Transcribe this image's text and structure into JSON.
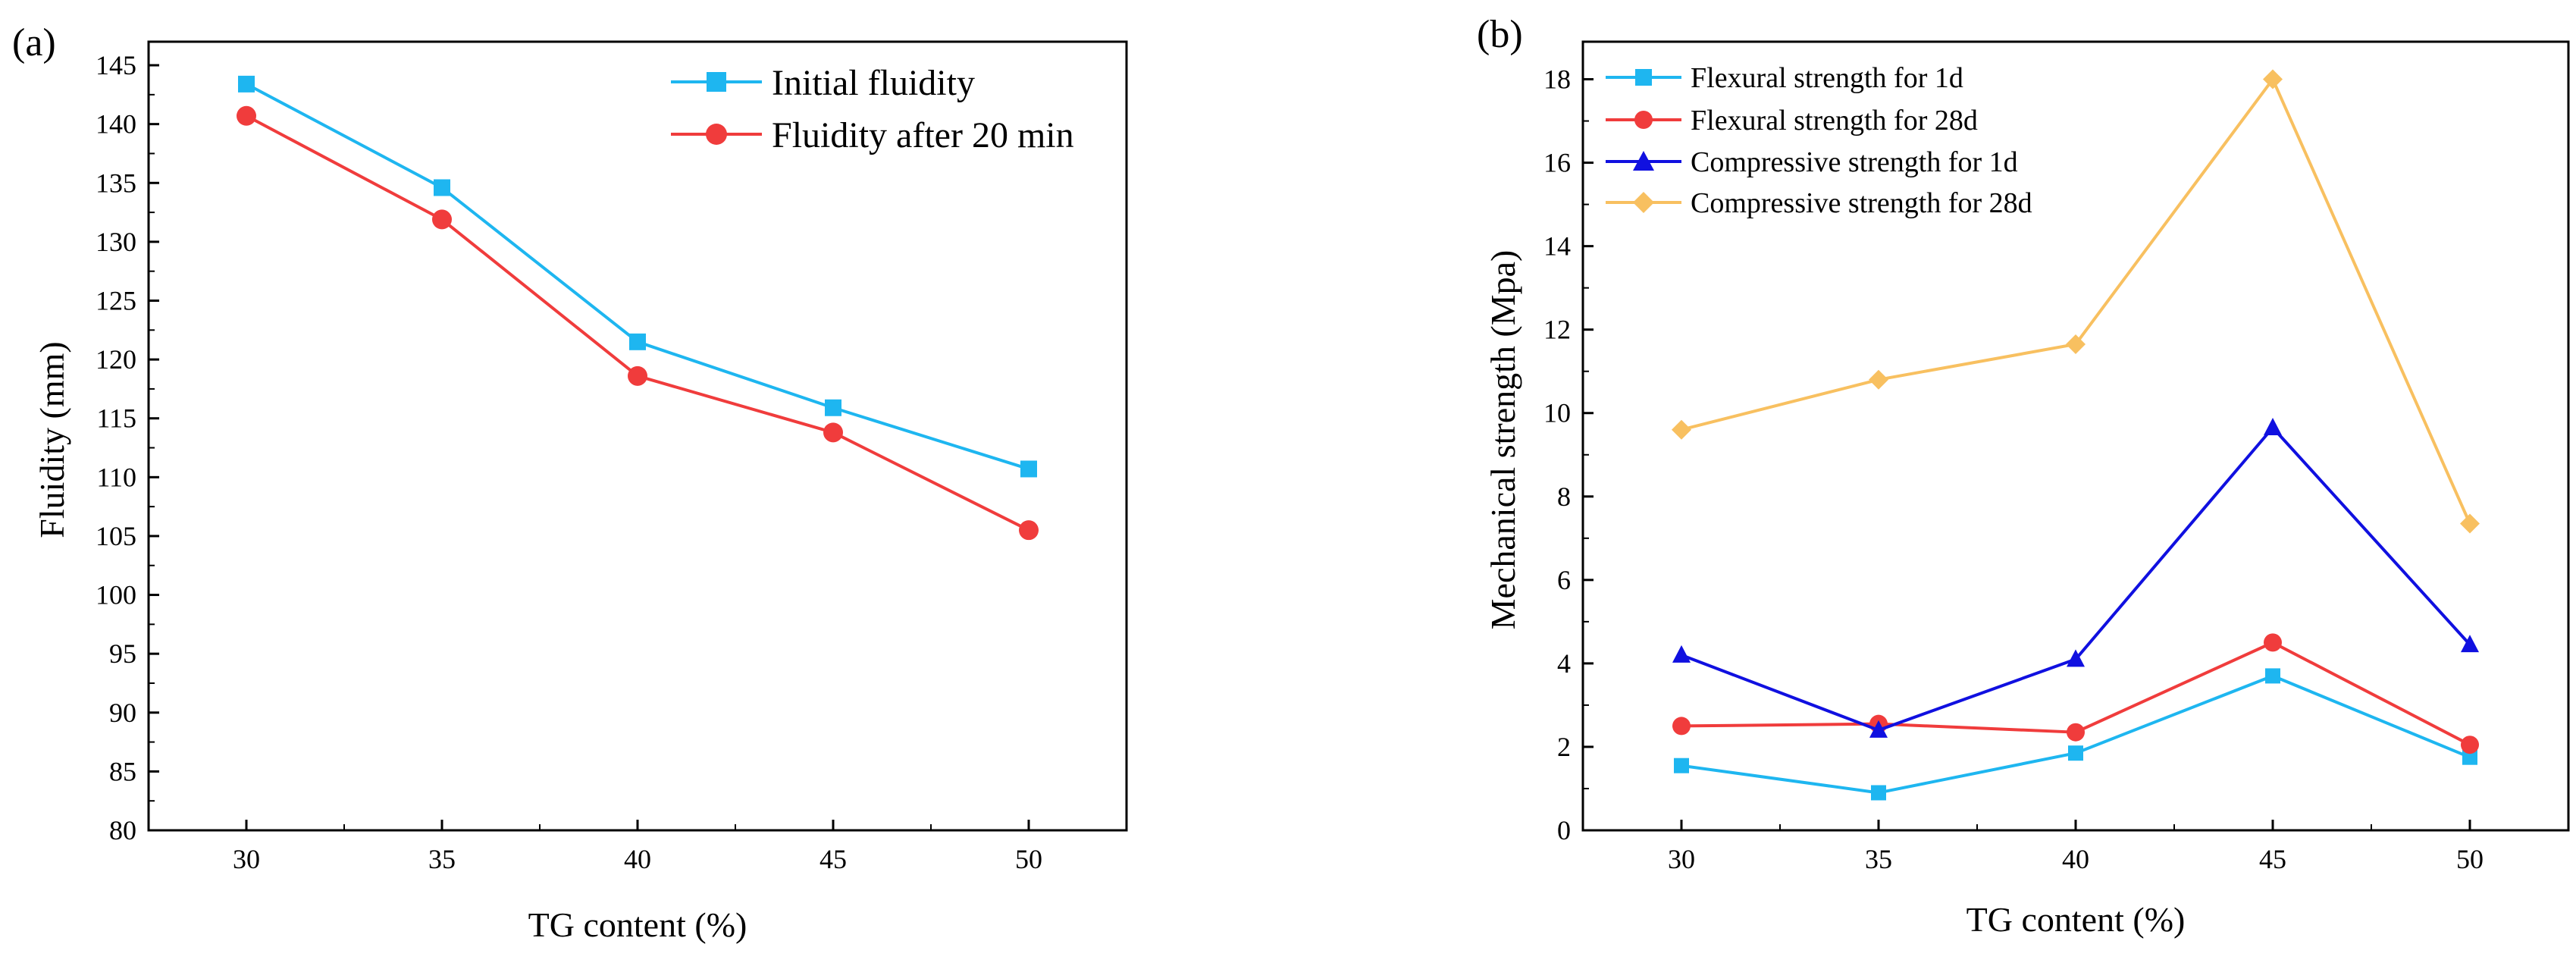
{
  "chart_data": [
    {
      "panel": "(a)",
      "type": "line",
      "xlabel": "TG content (%)",
      "ylabel": "Fluidity (mm)",
      "x": [
        30,
        35,
        40,
        45,
        50
      ],
      "xticks": [
        "30",
        "35",
        "40",
        "45",
        "50"
      ],
      "xlim": [
        27.5,
        52.5
      ],
      "ylim": [
        80,
        147
      ],
      "yticks": [
        "80",
        "85",
        "90",
        "95",
        "100",
        "105",
        "110",
        "115",
        "120",
        "125",
        "130",
        "135",
        "140",
        "145"
      ],
      "legend_position": "top-right",
      "series": [
        {
          "name": "Initial fluidity",
          "marker": "square",
          "color": "#1EB6F0",
          "values": [
            143.4,
            134.6,
            121.5,
            115.9,
            110.7
          ]
        },
        {
          "name": "Fluidity after 20 min",
          "marker": "circle",
          "color": "#F03C3C",
          "values": [
            140.7,
            131.9,
            118.6,
            113.8,
            105.5
          ]
        }
      ]
    },
    {
      "panel": "(b)",
      "type": "line",
      "xlabel": "TG content (%)",
      "ylabel": "Mechanical strength (Mpa)",
      "x": [
        30,
        35,
        40,
        45,
        50
      ],
      "xticks": [
        "30",
        "35",
        "40",
        "45",
        "50"
      ],
      "xlim": [
        27.5,
        52.5
      ],
      "ylim": [
        0,
        18.9
      ],
      "yticks": [
        "0",
        "2",
        "4",
        "6",
        "8",
        "10",
        "12",
        "14",
        "16",
        "18"
      ],
      "legend_position": "top-left",
      "series": [
        {
          "name": "Flexural strength for 1d",
          "marker": "square",
          "color": "#1EB6F0",
          "values": [
            1.55,
            0.9,
            1.85,
            3.7,
            1.75
          ]
        },
        {
          "name": "Flexural strength for 28d",
          "marker": "circle",
          "color": "#F03C3C",
          "values": [
            2.5,
            2.55,
            2.35,
            4.5,
            2.05
          ]
        },
        {
          "name": "Compressive strength for 1d",
          "marker": "triangle",
          "color": "#1010E0",
          "values": [
            4.2,
            2.4,
            4.1,
            9.65,
            4.45
          ]
        },
        {
          "name": "Compressive strength for 28d",
          "marker": "diamond",
          "color": "#F8C060",
          "values": [
            9.6,
            10.8,
            11.65,
            18.0,
            7.35
          ]
        }
      ]
    }
  ]
}
